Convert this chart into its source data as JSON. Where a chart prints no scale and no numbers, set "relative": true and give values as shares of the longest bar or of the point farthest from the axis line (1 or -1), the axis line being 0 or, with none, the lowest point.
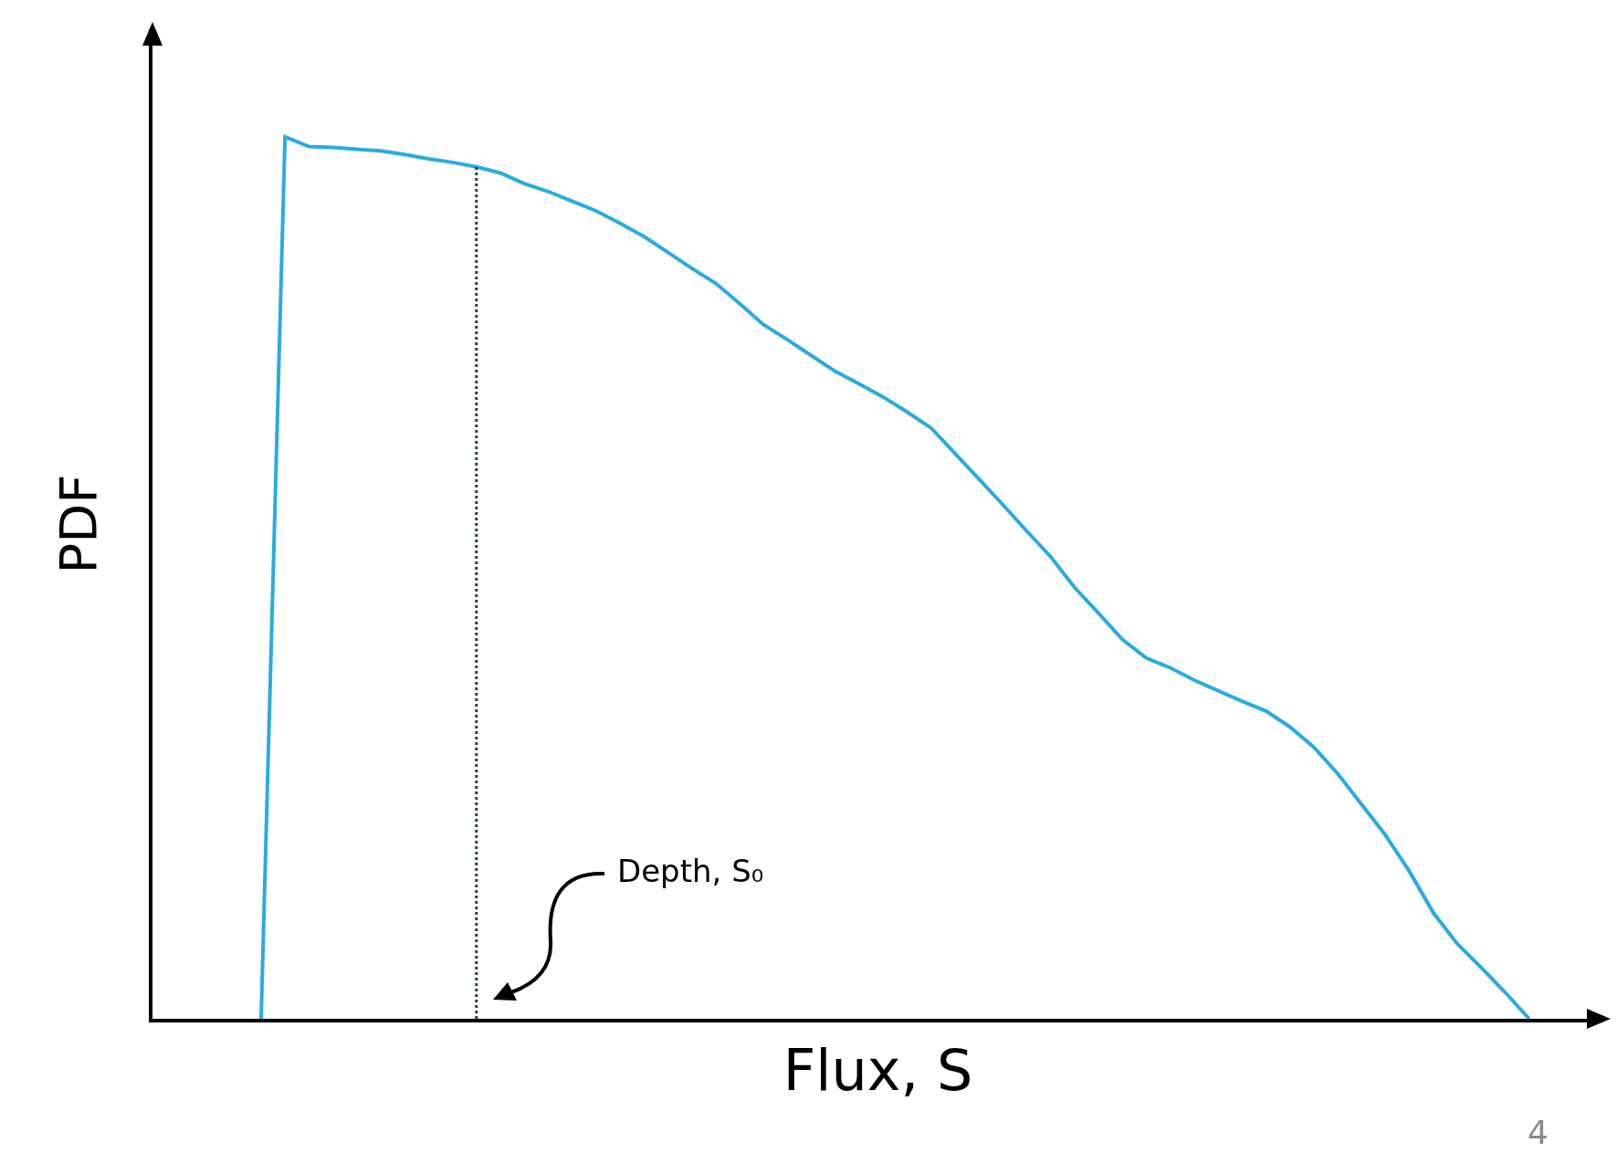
{
  "chart_data": {
    "type": "line",
    "relative": true,
    "xlabel": "Flux, S",
    "ylabel": "PDF",
    "color": "#29abe2",
    "categories": [
      null,
      null,
      null,
      null,
      null,
      null,
      null,
      null,
      null,
      null,
      null,
      null,
      null,
      null,
      null,
      null,
      null,
      null,
      null,
      null,
      null,
      null,
      null,
      null,
      null,
      null,
      null,
      null,
      null,
      null,
      null,
      null,
      null,
      null,
      null,
      null,
      null,
      null,
      null,
      null,
      null,
      null,
      null,
      null,
      null,
      null,
      null,
      null,
      null,
      null,
      null,
      null,
      null,
      null
    ],
    "values": [
      0,
      1,
      0.989,
      0.988,
      0.986,
      0.984,
      0.98,
      0.975,
      0.971,
      0.966,
      0.959,
      0.947,
      0.938,
      0.927,
      0.916,
      0.902,
      0.887,
      0.869,
      0.851,
      0.834,
      0.811,
      0.787,
      0.77,
      0.752,
      0.734,
      0.72,
      0.705,
      0.688,
      0.67,
      0.641,
      0.612,
      0.583,
      0.553,
      0.524,
      0.489,
      0.46,
      0.43,
      0.409,
      0.398,
      0.384,
      0.372,
      0.36,
      0.349,
      0.331,
      0.308,
      0.278,
      0.243,
      0.208,
      0.167,
      0.12,
      0.085,
      0.058,
      0.03,
      0
    ],
    "annotations": [
      "Depth, S₀",
      "4"
    ]
  }
}
